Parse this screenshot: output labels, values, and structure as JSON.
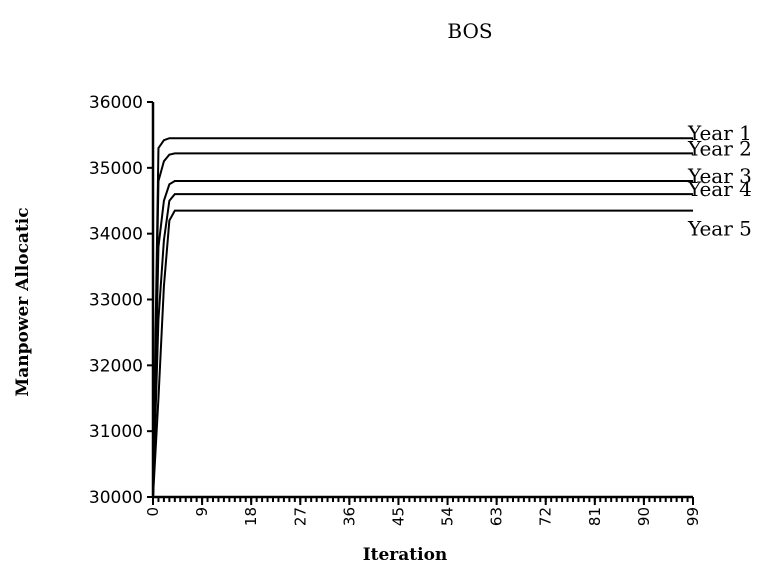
{
  "chart_data": {
    "type": "line",
    "title": "BOS",
    "xlabel": "Iteration",
    "ylabel": "Manpower Allocatic",
    "xlim": [
      0,
      99
    ],
    "ylim": [
      30000,
      36000
    ],
    "yticks": [
      30000,
      31000,
      32000,
      33000,
      34000,
      35000,
      36000
    ],
    "xticks": [
      0,
      9,
      18,
      27,
      36,
      45,
      54,
      63,
      72,
      81,
      90,
      99
    ],
    "grid": false,
    "legend": "right-end-labels",
    "x": [
      0,
      1,
      2,
      3,
      4,
      5,
      99
    ],
    "series": [
      {
        "name": "Year 1",
        "values": [
          30000,
          35300,
          35420,
          35450,
          35450,
          35450,
          35450
        ]
      },
      {
        "name": "Year 2",
        "values": [
          30000,
          34800,
          35100,
          35200,
          35220,
          35220,
          35220
        ]
      },
      {
        "name": "Year 3",
        "values": [
          30000,
          33800,
          34500,
          34750,
          34800,
          34800,
          34800
        ]
      },
      {
        "name": "Year 4",
        "values": [
          30000,
          32700,
          33900,
          34500,
          34600,
          34600,
          34600
        ]
      },
      {
        "name": "Year 5",
        "values": [
          30000,
          31500,
          33200,
          34200,
          34350,
          34350,
          34350
        ]
      }
    ]
  }
}
